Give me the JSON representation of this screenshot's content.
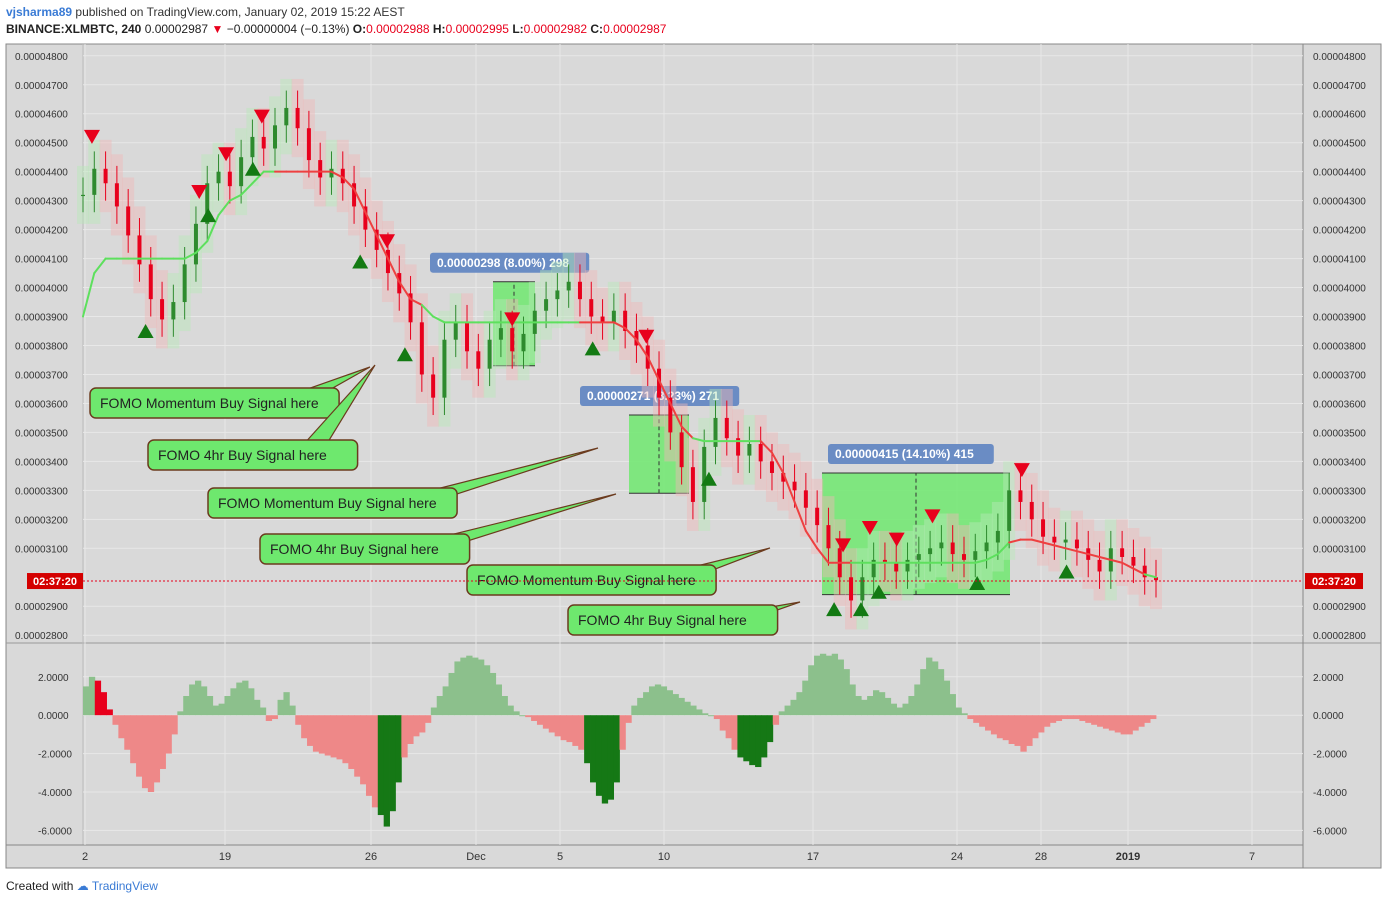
{
  "header": {
    "user": "vjsharma89",
    "published_text": "published on TradingView.com, January 02, 2019 15:22 AEST",
    "symbol": "BINANCE:XLMBTC, 240",
    "last_price": "0.00002987",
    "change": "−0.00000004 (−0.13%)",
    "o_label": "O:",
    "o_value": "0.00002988",
    "h_label": "H:",
    "h_value": "0.00002995",
    "l_label": "L:",
    "l_value": "0.00002982",
    "c_label": "C:",
    "c_value": "0.00002987"
  },
  "footer": {
    "created_with": "Created with",
    "brand": "TradingView"
  },
  "colors": {
    "up": "#2e8b2e",
    "down": "#e8001c",
    "ma_up": "#5de05d",
    "ma_down": "#ee4040",
    "box": "#6ee86e",
    "label_bg": "#6a8cc4",
    "callout_bg": "#6ee86e",
    "hist_red": "#ee8888",
    "hist_green": "#8cc08c",
    "hist_dark": "#157815"
  },
  "chart_data": [
    {
      "type": "line",
      "panel": "price",
      "y_ticks": [
        "0.00004800",
        "0.00004700",
        "0.00004600",
        "0.00004500",
        "0.00004400",
        "0.00004300",
        "0.00004200",
        "0.00004100",
        "0.00004000",
        "0.00003900",
        "0.00003800",
        "0.00003700",
        "0.00003600",
        "0.00003500",
        "0.00003400",
        "0.00003300",
        "0.00003200",
        "0.00003100",
        "0.00002900",
        "0.00002800"
      ],
      "ylim": [
        2.78e-05,
        4.82e-05
      ],
      "x_ticks": [
        "2",
        "19",
        "26",
        "Dec",
        "5",
        "10",
        "17",
        "24",
        "28",
        "2019",
        "7"
      ],
      "countdown": "02:37:20",
      "current_price": 2.987e-05,
      "close_series": [
        4.32e-05,
        4.41e-05,
        4.36e-05,
        4.28e-05,
        4.18e-05,
        4.08e-05,
        3.96e-05,
        3.89e-05,
        3.95e-05,
        4.08e-05,
        4.22e-05,
        4.36e-05,
        4.4e-05,
        4.35e-05,
        4.45e-05,
        4.52e-05,
        4.48e-05,
        4.56e-05,
        4.62e-05,
        4.55e-05,
        4.44e-05,
        4.38e-05,
        4.41e-05,
        4.36e-05,
        4.28e-05,
        4.2e-05,
        4.13e-05,
        4.05e-05,
        3.98e-05,
        3.88e-05,
        3.7e-05,
        3.62e-05,
        3.82e-05,
        3.88e-05,
        3.78e-05,
        3.72e-05,
        3.82e-05,
        3.86e-05,
        3.78e-05,
        3.84e-05,
        3.92e-05,
        3.96e-05,
        3.99e-05,
        4.02e-05,
        3.96e-05,
        3.9e-05,
        3.88e-05,
        3.92e-05,
        3.85e-05,
        3.8e-05,
        3.72e-05,
        3.62e-05,
        3.5e-05,
        3.38e-05,
        3.26e-05,
        3.45e-05,
        3.55e-05,
        3.48e-05,
        3.42e-05,
        3.46e-05,
        3.4e-05,
        3.36e-05,
        3.33e-05,
        3.3e-05,
        3.24e-05,
        3.18e-05,
        3.1e-05,
        3e-05,
        2.92e-05,
        3e-05,
        3.06e-05,
        3.05e-05,
        3.02e-05,
        3.06e-05,
        3.08e-05,
        3.1e-05,
        3.12e-05,
        3.08e-05,
        3.06e-05,
        3.09e-05,
        3.12e-05,
        3.16e-05,
        3.3e-05,
        3.26e-05,
        3.2e-05,
        3.14e-05,
        3.12e-05,
        3.13e-05,
        3.1e-05,
        3.06e-05,
        3.02e-05,
        3.1e-05,
        3.07e-05,
        3.04e-05,
        3e-05,
        2.99e-05
      ],
      "ma_series": [
        3.9e-05,
        4.05e-05,
        4.1e-05,
        4.1e-05,
        4.1e-05,
        4.1e-05,
        4.1e-05,
        4.1e-05,
        4.1e-05,
        4.1e-05,
        4.12e-05,
        4.16e-05,
        4.25e-05,
        4.3e-05,
        4.32e-05,
        4.36e-05,
        4.4e-05,
        4.4e-05,
        4.4e-05,
        4.4e-05,
        4.4e-05,
        4.4e-05,
        4.4e-05,
        4.38e-05,
        4.34e-05,
        4.26e-05,
        4.18e-05,
        4.1e-05,
        4.02e-05,
        3.96e-05,
        3.94e-05,
        3.9e-05,
        3.88e-05,
        3.88e-05,
        3.88e-05,
        3.88e-05,
        3.88e-05,
        3.88e-05,
        3.88e-05,
        3.88e-05,
        3.88e-05,
        3.88e-05,
        3.88e-05,
        3.88e-05,
        3.88e-05,
        3.88e-05,
        3.88e-05,
        3.88e-05,
        3.86e-05,
        3.82e-05,
        3.76e-05,
        3.68e-05,
        3.6e-05,
        3.52e-05,
        3.48e-05,
        3.47e-05,
        3.47e-05,
        3.47e-05,
        3.47e-05,
        3.47e-05,
        3.47e-05,
        3.43e-05,
        3.36e-05,
        3.26e-05,
        3.16e-05,
        3.1e-05,
        3.05e-05,
        3.05e-05,
        3.05e-05,
        3.05e-05,
        3.05e-05,
        3.05e-05,
        3.05e-05,
        3.05e-05,
        3.05e-05,
        3.05e-05,
        3.05e-05,
        3.05e-05,
        3.05e-05,
        3.05e-05,
        3.06e-05,
        3.08e-05,
        3.12e-05,
        3.13e-05,
        3.13e-05,
        3.12e-05,
        3.11e-05,
        3.1e-05,
        3.09e-05,
        3.08e-05,
        3.07e-05,
        3.06e-05,
        3.05e-05,
        3.03e-05,
        3.01e-05,
        3e-05
      ],
      "ma_colors": [
        "up",
        "up",
        "up",
        "up",
        "up",
        "up",
        "up",
        "up",
        "up",
        "up",
        "up",
        "up",
        "up",
        "up",
        "up",
        "up",
        "up",
        "down",
        "down",
        "down",
        "down",
        "down",
        "down",
        "down",
        "down",
        "down",
        "down",
        "down",
        "down",
        "down",
        "up",
        "up",
        "up",
        "up",
        "up",
        "up",
        "up",
        "up",
        "up",
        "up",
        "up",
        "up",
        "up",
        "up",
        "down",
        "down",
        "down",
        "down",
        "down",
        "down",
        "down",
        "down",
        "down",
        "down",
        "up",
        "up",
        "up",
        "up",
        "up",
        "up",
        "down",
        "down",
        "down",
        "down",
        "down",
        "down",
        "down",
        "down",
        "up",
        "up",
        "up",
        "up",
        "up",
        "up",
        "up",
        "up",
        "up",
        "up",
        "up",
        "up",
        "up",
        "up",
        "down",
        "down",
        "down",
        "down",
        "down",
        "down",
        "down",
        "down",
        "down",
        "down",
        "down",
        "down",
        "up",
        "up"
      ],
      "buy_markers": [
        7,
        14,
        19,
        31,
        36,
        57,
        70,
        84,
        87,
        89,
        100,
        110
      ],
      "sell_markers": [
        1,
        13,
        16,
        20,
        34,
        48,
        63,
        85,
        88,
        91,
        95,
        105
      ],
      "measure_boxes": [
        {
          "from": 3.73e-05,
          "to": 4.02e-05,
          "label": "0.00000298 (8.00%) 298"
        },
        {
          "from": 3.29e-05,
          "to": 3.56e-05,
          "label": "0.00000271 (8.23%) 271"
        },
        {
          "from": 2.94e-05,
          "to": 3.36e-05,
          "label": "0.00000415 (14.10%) 415"
        }
      ],
      "callouts": [
        "FOMO Momentum Buy Signal here",
        "FOMO 4hr Buy Signal here",
        "FOMO Momentum Buy Signal here",
        "FOMO 4hr Buy Signal here",
        "FOMO Momentum Buy Signal here",
        "FOMO 4hr Buy Signal here"
      ]
    },
    {
      "type": "bar",
      "panel": "oscillator",
      "y_ticks": [
        "2.0000",
        "0.0000",
        "-2.0000",
        "-4.0000",
        "-6.0000"
      ],
      "ylim": [
        -6.5,
        3.5
      ],
      "values": [
        1.5,
        2.0,
        1.8,
        1.2,
        0.3,
        -0.5,
        -1.2,
        -1.8,
        -2.5,
        -3.2,
        -3.8,
        -4.0,
        -3.5,
        -2.8,
        -2.0,
        -1.0,
        0.2,
        1.0,
        1.6,
        1.8,
        1.5,
        1.0,
        0.5,
        0.6,
        1.0,
        1.4,
        1.7,
        1.8,
        1.4,
        0.8,
        0.4,
        -0.3,
        -0.2,
        0.8,
        1.2,
        0.5,
        -0.5,
        -1.2,
        -1.6,
        -1.9,
        -2.0,
        -2.1,
        -2.2,
        -2.3,
        -2.5,
        -2.8,
        -3.2,
        -3.6,
        -4.2,
        -4.8,
        -5.2,
        -5.8,
        -5.0,
        -3.5,
        -2.2,
        -1.5,
        -1.1,
        -0.9,
        -0.4,
        0.4,
        1.0,
        1.5,
        2.2,
        2.8,
        3.0,
        3.1,
        3.0,
        2.9,
        2.6,
        2.2,
        1.6,
        1.0,
        0.5,
        0.2,
        0.0,
        -0.1,
        -0.3,
        -0.5,
        -0.7,
        -0.9,
        -1.1,
        -1.3,
        -1.4,
        -1.6,
        -1.8,
        -2.5,
        -3.5,
        -4.2,
        -4.6,
        -4.4,
        -3.5,
        -1.8,
        -0.4,
        0.5,
        0.9,
        1.2,
        1.5,
        1.6,
        1.5,
        1.3,
        1.1,
        0.9,
        0.7,
        0.5,
        0.3,
        0.1,
        0.0,
        -0.2,
        -0.8,
        -1.2,
        -1.8,
        -2.2,
        -2.4,
        -2.6,
        -2.7,
        -2.2,
        -1.4,
        -0.5,
        0.2,
        0.5,
        0.8,
        1.2,
        1.8,
        2.6,
        3.1,
        3.2,
        3.1,
        3.2,
        2.9,
        2.4,
        1.6,
        1.0,
        0.8,
        1.0,
        1.3,
        1.2,
        0.9,
        0.6,
        0.4,
        0.6,
        1.0,
        1.6,
        2.4,
        3.0,
        2.8,
        2.4,
        1.8,
        1.1,
        0.4,
        0.1,
        -0.2,
        -0.4,
        -0.6,
        -0.8,
        -1.0,
        -1.2,
        -1.3,
        -1.5,
        -1.6,
        -1.9,
        -1.6,
        -1.2,
        -0.9,
        -0.6,
        -0.4,
        -0.3,
        -0.2,
        -0.2,
        -0.2,
        -0.3,
        -0.4,
        -0.5,
        -0.6,
        -0.7,
        -0.8,
        -0.9,
        -1.0,
        -1.0,
        -0.8,
        -0.6,
        -0.4,
        -0.2
      ]
    }
  ]
}
